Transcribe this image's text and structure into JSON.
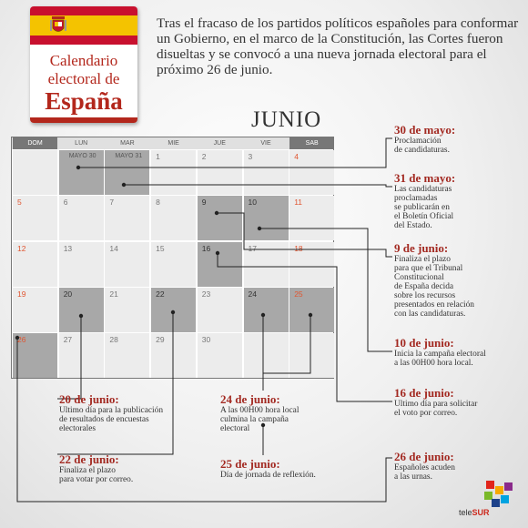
{
  "badge": {
    "line1": "Calendario",
    "line2": "electoral de",
    "line3": "España",
    "colors": {
      "red": "#c8102e",
      "yellow": "#f4c300",
      "text": "#b3271c"
    }
  },
  "intro": "Tras el fracaso de los partidos políticos españoles para conformar un Gobierno, en el marco de la Constitución, las Cortes fueron disueltas y se convocó a una nueva jornada electoral para el próximo 26 de junio.",
  "month": "JUNIO",
  "calendar": {
    "weekdays": [
      "DOM",
      "LUN",
      "MAR",
      "MIE",
      "JUE",
      "VIE",
      "SAB"
    ],
    "rows": [
      [
        {
          "n": ""
        },
        {
          "n": "MAYO 30",
          "hl": true
        },
        {
          "n": "MAYO 31",
          "hl": true
        },
        {
          "n": "1"
        },
        {
          "n": "2"
        },
        {
          "n": "3"
        },
        {
          "n": "4",
          "red": true
        }
      ],
      [
        {
          "n": "5",
          "red": true
        },
        {
          "n": "6"
        },
        {
          "n": "7"
        },
        {
          "n": "8"
        },
        {
          "n": "9",
          "hl": true
        },
        {
          "n": "10",
          "hl": true
        },
        {
          "n": "11",
          "red": true
        }
      ],
      [
        {
          "n": "12",
          "red": true
        },
        {
          "n": "13"
        },
        {
          "n": "14"
        },
        {
          "n": "15"
        },
        {
          "n": "16",
          "hl": true
        },
        {
          "n": "17"
        },
        {
          "n": "18",
          "red": true
        }
      ],
      [
        {
          "n": "19",
          "red": true
        },
        {
          "n": "20",
          "hl": true
        },
        {
          "n": "21"
        },
        {
          "n": "22",
          "hl": true
        },
        {
          "n": "23"
        },
        {
          "n": "24",
          "hl": true
        },
        {
          "n": "25",
          "hl": true,
          "red": true
        }
      ],
      [
        {
          "n": "26",
          "hl": true,
          "red": true
        },
        {
          "n": "27"
        },
        {
          "n": "28"
        },
        {
          "n": "29"
        },
        {
          "n": "30"
        },
        {
          "n": ""
        },
        {
          "n": ""
        }
      ]
    ]
  },
  "annotations": {
    "may30": {
      "date": "30 de mayo:",
      "text": [
        "Proclamación",
        "de candidaturas."
      ]
    },
    "may31": {
      "date": "31 de mayo:",
      "text": [
        "Las candidaturas",
        "proclamadas",
        "se publicarán en",
        "el Boletín Oficial",
        "del Estado."
      ]
    },
    "jun9": {
      "date": "9 de junio:",
      "text": [
        "Finaliza el plazo",
        "para que el Tribunal",
        "Constitucional",
        "de España decida",
        "sobre los recursos",
        "presentados en relación",
        "con las candidaturas."
      ]
    },
    "jun10": {
      "date": "10 de junio:",
      "text": [
        "Inicia la campaña electoral",
        "a las 00H00 hora local."
      ]
    },
    "jun16": {
      "date": "16 de junio:",
      "text": [
        "Ultimo día para solicitar",
        "el voto por correo."
      ]
    },
    "jun20": {
      "date": "20 de junio:",
      "text": [
        "Ultimo día para la publicación",
        "de resultados de encuestas",
        "electorales"
      ]
    },
    "jun24": {
      "date": "24 de junio:",
      "text": [
        "A las 00H00 hora local",
        "culmina la campaña",
        "electoral"
      ]
    },
    "jun22": {
      "date": "22 de junio:",
      "text": [
        "Finaliza el plazo",
        "para votar por correo."
      ]
    },
    "jun25": {
      "date": "25 de junio:",
      "text": [
        "Día de jornada de reflexión."
      ]
    },
    "jun26": {
      "date": "26 de junio:",
      "text": [
        "Españoles acuden",
        "a las urnas."
      ]
    }
  },
  "logo": {
    "prefix": "tele",
    "suffix": "SUR",
    "colors": [
      "#e1251b",
      "#f6a800",
      "#7ab929",
      "#00a3e0",
      "#1d428a",
      "#8a2a8b"
    ]
  }
}
